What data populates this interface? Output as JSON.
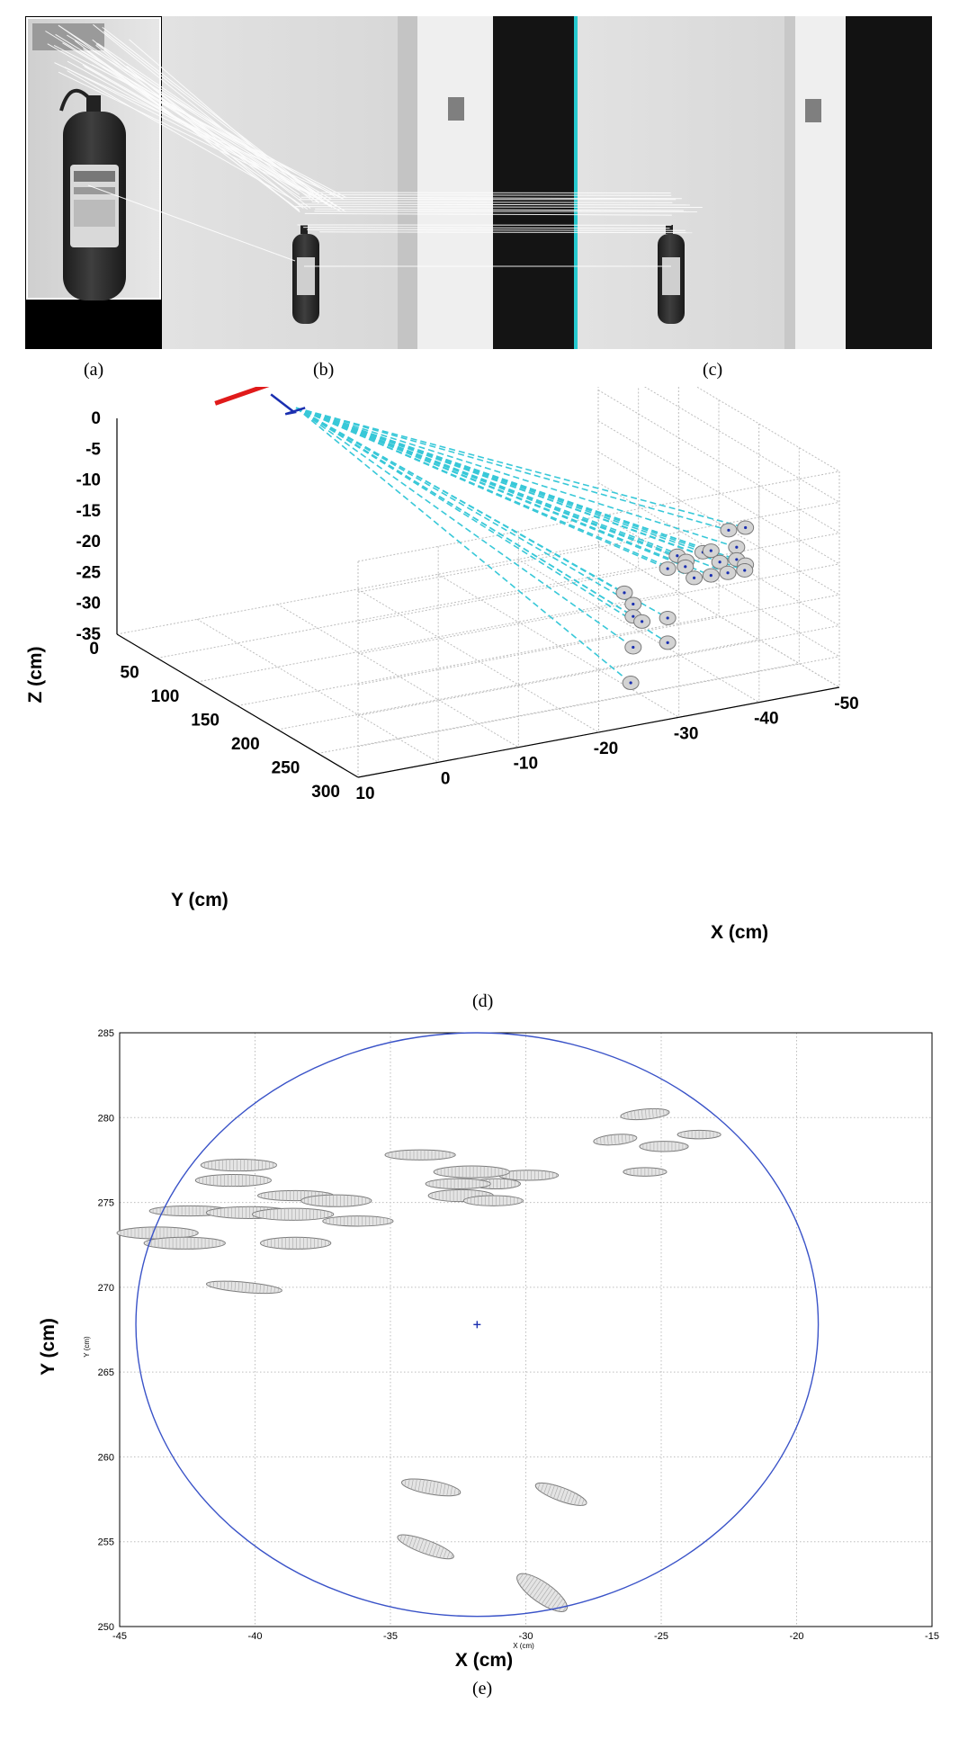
{
  "captions": {
    "a": "(a)",
    "b": "(b)",
    "c": "(c)",
    "d": "(d)",
    "e": "(e)"
  },
  "colors": {
    "match_lines": "#ffffff",
    "divider": "#27c9cf",
    "camera": "#e01a1a",
    "trajectory": "#1a2fb0",
    "rays": "#38c8d8",
    "ellipse": "#7a7a7a",
    "circle": "#3a53c8",
    "center": "#1a2fb0",
    "grid": "#bdbdbd"
  },
  "icons": {
    "object": "fire-extinguisher-icon",
    "sign": "exit-sign-icon"
  },
  "chart_data": [
    {
      "type": "scatter",
      "subtype": "3d",
      "title": "",
      "xlabel": "X (cm)",
      "ylabel": "Y (cm)",
      "zlabel": "Z (cm)",
      "xlim": [
        10,
        -50
      ],
      "ylim": [
        0,
        300
      ],
      "zlim": [
        -35,
        0
      ],
      "xticks": [
        "10",
        "0",
        "-10",
        "-20",
        "-30",
        "-40",
        "-50"
      ],
      "yticks": [
        "0",
        "50",
        "100",
        "150",
        "200",
        "250",
        "300"
      ],
      "zticks": [
        "0",
        "-5",
        "-10",
        "-15",
        "-20",
        "-25",
        "-30",
        "-35"
      ],
      "grid": true,
      "camera_position": {
        "x": 0,
        "y": 0,
        "z": 0
      },
      "landmarks": [
        {
          "x": -38,
          "y": 282,
          "z": -8
        },
        {
          "x": -40,
          "y": 283,
          "z": -8
        },
        {
          "x": -32,
          "y": 278,
          "z": -11
        },
        {
          "x": -33,
          "y": 279,
          "z": -12
        },
        {
          "x": -35,
          "y": 280,
          "z": -11
        },
        {
          "x": -36,
          "y": 280,
          "z": -11
        },
        {
          "x": -39,
          "y": 282,
          "z": -11
        },
        {
          "x": -31,
          "y": 276,
          "z": -13
        },
        {
          "x": -33,
          "y": 278,
          "z": -13
        },
        {
          "x": -37,
          "y": 281,
          "z": -13
        },
        {
          "x": -39,
          "y": 282,
          "z": -13
        },
        {
          "x": -40,
          "y": 283,
          "z": -14
        },
        {
          "x": -34,
          "y": 279,
          "z": -15
        },
        {
          "x": -36,
          "y": 280,
          "z": -15
        },
        {
          "x": -38,
          "y": 281,
          "z": -15
        },
        {
          "x": -40,
          "y": 282,
          "z": -15
        },
        {
          "x": -26,
          "y": 272,
          "z": -16
        },
        {
          "x": -27,
          "y": 273,
          "z": -18
        },
        {
          "x": -27,
          "y": 273,
          "z": -20
        },
        {
          "x": -28,
          "y": 274,
          "z": -21
        },
        {
          "x": -31,
          "y": 276,
          "z": -21
        },
        {
          "x": -27,
          "y": 273,
          "z": -25
        },
        {
          "x": -31,
          "y": 276,
          "z": -25
        },
        {
          "x": -27,
          "y": 270,
          "z": -31
        }
      ]
    },
    {
      "type": "scatter",
      "title": "",
      "xlabel": "X (cm)",
      "ylabel": "Y (cm)",
      "xlabel_small": "X (cm)",
      "ylabel_small": "Y (cm)",
      "xlim": [
        -45,
        -15
      ],
      "ylim": [
        250,
        285
      ],
      "xticks": [
        "-45",
        "-40",
        "-35",
        "-30",
        "-25",
        "-20",
        "-15"
      ],
      "yticks": [
        "285",
        "280",
        "275",
        "270",
        "265",
        "260",
        "255",
        "250"
      ],
      "grid": true,
      "center": {
        "x": -31.8,
        "y": 267.8
      },
      "circle": {
        "cx": -31.8,
        "cy": 267.8,
        "rx": 12.6,
        "ry": 17.2
      },
      "ellipses": [
        {
          "x": -25.6,
          "y": 280.2,
          "rx": 0.9,
          "ry": 0.3,
          "rot": 5
        },
        {
          "x": -23.6,
          "y": 279.0,
          "rx": 0.8,
          "ry": 0.25,
          "rot": 0
        },
        {
          "x": -26.7,
          "y": 278.7,
          "rx": 0.8,
          "ry": 0.3,
          "rot": 5
        },
        {
          "x": -24.9,
          "y": 278.3,
          "rx": 0.9,
          "ry": 0.3,
          "rot": 0
        },
        {
          "x": -25.6,
          "y": 276.8,
          "rx": 0.8,
          "ry": 0.25,
          "rot": 0
        },
        {
          "x": -29.9,
          "y": 276.6,
          "rx": 1.1,
          "ry": 0.3,
          "rot": 0
        },
        {
          "x": -33.9,
          "y": 277.8,
          "rx": 1.3,
          "ry": 0.3,
          "rot": 0
        },
        {
          "x": -32.0,
          "y": 276.8,
          "rx": 1.4,
          "ry": 0.35,
          "rot": 0
        },
        {
          "x": -31.1,
          "y": 276.1,
          "rx": 0.9,
          "ry": 0.3,
          "rot": 0
        },
        {
          "x": -32.5,
          "y": 276.1,
          "rx": 1.2,
          "ry": 0.3,
          "rot": 0
        },
        {
          "x": -32.4,
          "y": 275.4,
          "rx": 1.2,
          "ry": 0.35,
          "rot": 0
        },
        {
          "x": -31.2,
          "y": 275.1,
          "rx": 1.1,
          "ry": 0.3,
          "rot": 0
        },
        {
          "x": -40.6,
          "y": 277.2,
          "rx": 1.4,
          "ry": 0.35,
          "rot": 0
        },
        {
          "x": -40.8,
          "y": 276.3,
          "rx": 1.4,
          "ry": 0.35,
          "rot": 0
        },
        {
          "x": -38.5,
          "y": 275.4,
          "rx": 1.4,
          "ry": 0.3,
          "rot": 0
        },
        {
          "x": -37.0,
          "y": 275.1,
          "rx": 1.3,
          "ry": 0.35,
          "rot": 0
        },
        {
          "x": -42.4,
          "y": 274.5,
          "rx": 1.5,
          "ry": 0.3,
          "rot": 0
        },
        {
          "x": -40.2,
          "y": 274.4,
          "rx": 1.6,
          "ry": 0.35,
          "rot": 0
        },
        {
          "x": -38.6,
          "y": 274.3,
          "rx": 1.5,
          "ry": 0.35,
          "rot": 0
        },
        {
          "x": -36.2,
          "y": 273.9,
          "rx": 1.3,
          "ry": 0.3,
          "rot": 0
        },
        {
          "x": -43.6,
          "y": 273.2,
          "rx": 1.5,
          "ry": 0.35,
          "rot": 0
        },
        {
          "x": -42.6,
          "y": 272.6,
          "rx": 1.5,
          "ry": 0.35,
          "rot": 0
        },
        {
          "x": -38.5,
          "y": 272.6,
          "rx": 1.3,
          "ry": 0.35,
          "rot": 0
        },
        {
          "x": -40.4,
          "y": 270.0,
          "rx": 1.4,
          "ry": 0.3,
          "rot": -5
        },
        {
          "x": -33.5,
          "y": 258.2,
          "rx": 1.1,
          "ry": 0.4,
          "rot": -10
        },
        {
          "x": -28.7,
          "y": 257.8,
          "rx": 1.0,
          "ry": 0.4,
          "rot": -20
        },
        {
          "x": -33.7,
          "y": 254.7,
          "rx": 1.1,
          "ry": 0.4,
          "rot": -20
        },
        {
          "x": -29.4,
          "y": 252.0,
          "rx": 1.1,
          "ry": 0.6,
          "rot": -35
        }
      ]
    }
  ]
}
